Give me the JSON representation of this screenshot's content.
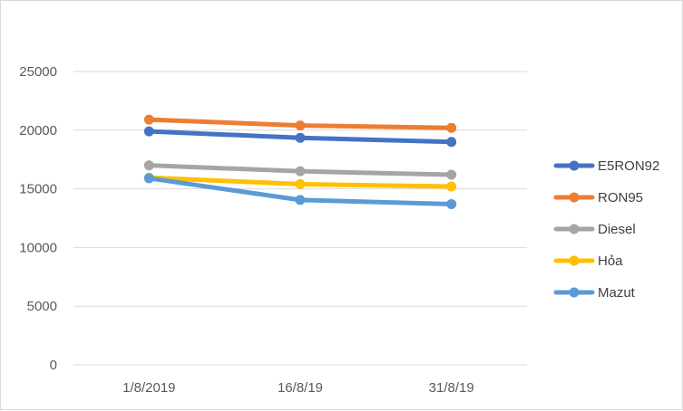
{
  "chart_data": {
    "type": "line",
    "title": "",
    "xlabel": "",
    "ylabel": "",
    "categories": [
      "1/8/2019",
      "16/8/19",
      "31/8/19"
    ],
    "ylim": [
      0,
      25000
    ],
    "yticks": [
      0,
      5000,
      10000,
      15000,
      20000,
      25000
    ],
    "grid": true,
    "legend_position": "right",
    "series": [
      {
        "name": "E5RON92",
        "color": "#4472C4",
        "values": [
          19900,
          19350,
          19000
        ]
      },
      {
        "name": "RON95",
        "color": "#ED7D31",
        "values": [
          20900,
          20400,
          20200
        ]
      },
      {
        "name": "Diesel",
        "color": "#A5A5A5",
        "values": [
          17000,
          16500,
          16200
        ]
      },
      {
        "name": "Hỏa",
        "color": "#FFC000",
        "values": [
          15950,
          15400,
          15200
        ]
      },
      {
        "name": "Mazut",
        "color": "#5B9BD5",
        "values": [
          15900,
          14050,
          13700
        ]
      }
    ]
  }
}
